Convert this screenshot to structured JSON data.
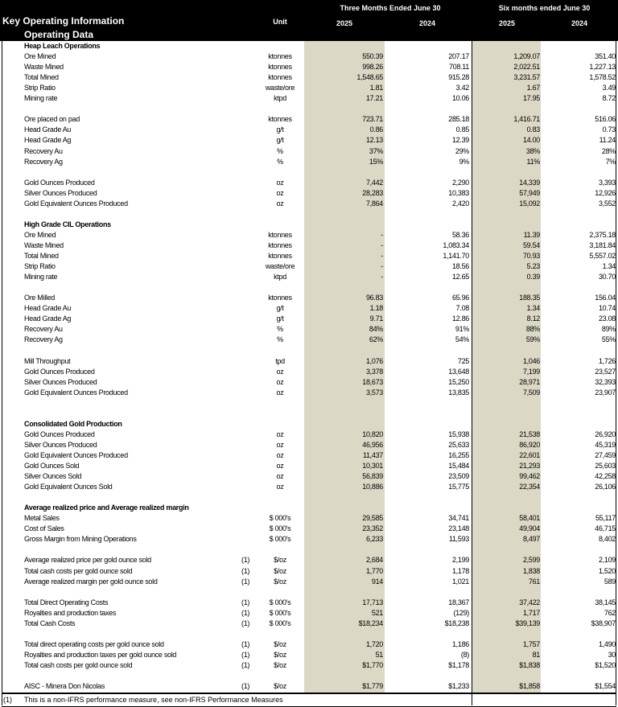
{
  "header": {
    "title": "Key Operating Information",
    "subtitle": "Operating Data",
    "unit_label": "Unit",
    "group1": "Three Months Ended June 30",
    "group2": "Six months ended June 30",
    "years": [
      "2025",
      "2024",
      "2025",
      "2024"
    ]
  },
  "rows": [
    {
      "type": "heading",
      "label": "Heap Leach Operations"
    },
    {
      "label": "Ore Mined",
      "unit": "ktonnes",
      "v": [
        "550.39",
        "207.17",
        "1,209.07",
        "351.40"
      ]
    },
    {
      "label": "Waste Mined",
      "unit": "ktonnes",
      "v": [
        "998.26",
        "708.11",
        "2,022.51",
        "1,227.13"
      ]
    },
    {
      "label": "Total Mined",
      "unit": "ktonnes",
      "v": [
        "1,548.65",
        "915.28",
        "3,231.57",
        "1,578.52"
      ]
    },
    {
      "label": "Strip Ratio",
      "unit": "waste/ore",
      "v": [
        "1.81",
        "3.42",
        "1.67",
        "3.49"
      ]
    },
    {
      "label": "Mining rate",
      "unit": "ktpd",
      "v": [
        "17.21",
        "10.06",
        "17.95",
        "8.72"
      ]
    },
    {
      "type": "blank"
    },
    {
      "label": "Ore placed on pad",
      "unit": "ktonnes",
      "v": [
        "723.71",
        "285.18",
        "1,416.71",
        "516.06"
      ]
    },
    {
      "label": "Head Grade Au",
      "unit": "g/t",
      "v": [
        "0.86",
        "0.85",
        "0.83",
        "0.73"
      ]
    },
    {
      "label": "Head Grade Ag",
      "unit": "g/t",
      "v": [
        "12.13",
        "12.39",
        "14.00",
        "11.24"
      ]
    },
    {
      "label": "Recovery Au",
      "unit": "%",
      "v": [
        "37%",
        "29%",
        "38%",
        "28%"
      ]
    },
    {
      "label": "Recovery Ag",
      "unit": "%",
      "v": [
        "15%",
        "9%",
        "11%",
        "7%"
      ]
    },
    {
      "type": "blank"
    },
    {
      "label": "Gold Ounces Produced",
      "unit": "oz",
      "v": [
        "7,442",
        "2,290",
        "14,339",
        "3,393"
      ]
    },
    {
      "label": "Silver Ounces Produced",
      "unit": "oz",
      "v": [
        "28,283",
        "10,383",
        "57,949",
        "12,926"
      ]
    },
    {
      "label": "Gold Equivalent Ounces Produced",
      "unit": "oz",
      "v": [
        "7,864",
        "2,420",
        "15,092",
        "3,552"
      ]
    },
    {
      "type": "blank"
    },
    {
      "type": "heading",
      "label": "High Grade CIL Operations"
    },
    {
      "label": "Ore Mined",
      "unit": "ktonnes",
      "v": [
        "-",
        "58.36",
        "11.39",
        "2,375.18"
      ]
    },
    {
      "label": "Waste Mined",
      "unit": "ktonnes",
      "v": [
        "-",
        "1,083.34",
        "59.54",
        "3,181.84"
      ]
    },
    {
      "label": "Total Mined",
      "unit": "ktonnes",
      "v": [
        "-",
        "1,141.70",
        "70.93",
        "5,557.02"
      ]
    },
    {
      "label": "Strip Ratio",
      "unit": "waste/ore",
      "v": [
        "-",
        "18.56",
        "5.23",
        "1.34"
      ]
    },
    {
      "label": "Mining rate",
      "unit": "ktpd",
      "v": [
        "-",
        "12.65",
        "0.39",
        "30.70"
      ]
    },
    {
      "type": "blank"
    },
    {
      "label": "Ore Milled",
      "unit": "ktonnes",
      "v": [
        "96.83",
        "65.96",
        "188.35",
        "156.04"
      ]
    },
    {
      "label": "Head Grade Au",
      "unit": "g/t",
      "v": [
        "1.18",
        "7.08",
        "1.34",
        "10.74"
      ]
    },
    {
      "label": "Head Grade Ag",
      "unit": "g/t",
      "v": [
        "9.71",
        "12.86",
        "8.12",
        "23.08"
      ]
    },
    {
      "label": "Recovery Au",
      "unit": "%",
      "v": [
        "84%",
        "91%",
        "88%",
        "89%"
      ]
    },
    {
      "label": "Recovery Ag",
      "unit": "%",
      "v": [
        "62%",
        "54%",
        "59%",
        "55%"
      ]
    },
    {
      "type": "blank"
    },
    {
      "label": "Mill Throughput",
      "unit": "tpd",
      "v": [
        "1,076",
        "725",
        "1,046",
        "1,726"
      ]
    },
    {
      "label": "Gold Ounces Produced",
      "unit": "oz",
      "v": [
        "3,378",
        "13,648",
        "7,199",
        "23,527"
      ]
    },
    {
      "label": "Silver Ounces Produced",
      "unit": "oz",
      "v": [
        "18,673",
        "15,250",
        "28,971",
        "32,393"
      ]
    },
    {
      "label": "Gold Equivalent Ounces Produced",
      "unit": "oz",
      "v": [
        "3,573",
        "13,835",
        "7,509",
        "23,907"
      ]
    },
    {
      "type": "blank"
    },
    {
      "type": "blank"
    },
    {
      "type": "heading",
      "label": "Consolidated Gold Production"
    },
    {
      "label": "Gold Ounces Produced",
      "unit": "oz",
      "v": [
        "10,820",
        "15,938",
        "21,538",
        "26,920"
      ]
    },
    {
      "label": "Silver Ounces Produced",
      "unit": "oz",
      "v": [
        "46,956",
        "25,633",
        "86,920",
        "45,319"
      ]
    },
    {
      "label": "Gold Equivalent Ounces Produced",
      "unit": "oz",
      "v": [
        "11,437",
        "16,255",
        "22,601",
        "27,459"
      ]
    },
    {
      "label": "Gold Ounces Sold",
      "unit": "oz",
      "v": [
        "10,301",
        "15,484",
        "21,293",
        "25,603"
      ]
    },
    {
      "label": "Silver Ounces Sold",
      "unit": "oz",
      "v": [
        "56,839",
        "23,509",
        "99,462",
        "42,258"
      ]
    },
    {
      "label": "Gold Equivalent Ounces Sold",
      "unit": "oz",
      "v": [
        "10,886",
        "15,775",
        "22,354",
        "26,106"
      ]
    },
    {
      "type": "blank"
    },
    {
      "type": "heading",
      "label": "Average realized price and Average realized margin"
    },
    {
      "label": "Metal Sales",
      "unit": "$ 000's",
      "v": [
        "29,585",
        "34,741",
        "58,401",
        "55,117"
      ]
    },
    {
      "label": "Cost of Sales",
      "unit": "$ 000's",
      "v": [
        "23,352",
        "23,148",
        "49,904",
        "46,715"
      ]
    },
    {
      "label": "Gross Margin from Mining Operations",
      "unit": "$ 000's",
      "v": [
        "6,233",
        "11,593",
        "8,497",
        "8,402"
      ]
    },
    {
      "type": "blank"
    },
    {
      "label": "Average realized price per gold ounce sold",
      "note": "(1)",
      "unit": "$/oz",
      "v": [
        "2,684",
        "2,199",
        "2,599",
        "2,109"
      ]
    },
    {
      "label": "Total cash costs per gold ounce sold",
      "note": "(1)",
      "unit": "$/oz",
      "v": [
        "1,770",
        "1,178",
        "1,838",
        "1,520"
      ]
    },
    {
      "label": "Average realized margin per gold ounce sold",
      "note": "(1)",
      "unit": "$/oz",
      "v": [
        "914",
        "1,021",
        "761",
        "589"
      ]
    },
    {
      "type": "blank"
    },
    {
      "label": "Total Direct Operating Costs",
      "note": "(1)",
      "unit": "$ 000's",
      "v": [
        "17,713",
        "18,367",
        "37,422",
        "38,145"
      ]
    },
    {
      "label": "Royalties and production taxes",
      "note": "(1)",
      "unit": "$ 000's",
      "v": [
        "521",
        "(129)",
        "1,717",
        "762"
      ]
    },
    {
      "label": "Total Cash Costs",
      "note": "(1)",
      "unit": "$ 000's",
      "v": [
        "$18,234",
        "$18,238",
        "$39,139",
        "$38,907"
      ]
    },
    {
      "type": "blank"
    },
    {
      "label": "Total direct operating costs per gold ounce sold",
      "note": "(1)",
      "unit": "$/oz",
      "v": [
        "1,720",
        "1,186",
        "1,757",
        "1,490"
      ]
    },
    {
      "label": "Royalties and production taxes per gold ounce sold",
      "note": "(1)",
      "unit": "$/oz",
      "v": [
        "51",
        "(8)",
        "81",
        "30"
      ]
    },
    {
      "label": "Total cash costs per gold ounce sold",
      "note": "(1)",
      "unit": "$/oz",
      "v": [
        "$1,770",
        "$1,178",
        "$1,838",
        "$1,520"
      ]
    },
    {
      "type": "blank"
    },
    {
      "label": "AISC - Minera Don Nicolas",
      "note": "(1)",
      "unit": "$/oz",
      "v": [
        "$1,779",
        "$1,233",
        "$1,858",
        "$1,554"
      ]
    }
  ],
  "footer": {
    "marker": "(1)",
    "text": "This is a non-IFRS performance measure, see non-IFRS Performance Measures"
  }
}
